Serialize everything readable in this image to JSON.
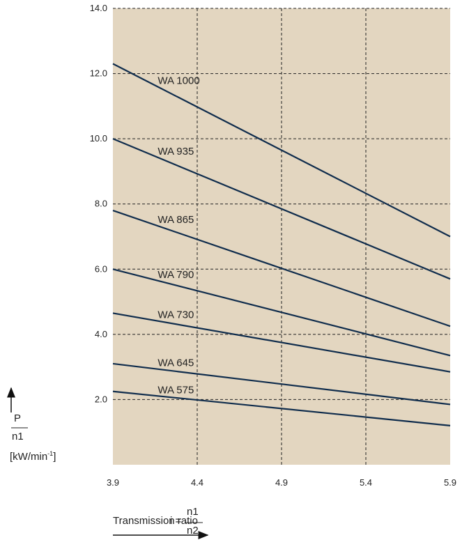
{
  "chart_data": {
    "type": "line",
    "xlim": [
      3.9,
      5.9
    ],
    "ylim": [
      0,
      14
    ],
    "x_ticks": [
      "3.9",
      "4.4",
      "4.9",
      "5.4",
      "5.9"
    ],
    "y_ticks": [
      "2.0",
      "4.0",
      "6.0",
      "8.0",
      "10.0",
      "12.0",
      "14.0"
    ],
    "grid": true,
    "background_color": "#e3d6c0",
    "line_color": "#0f2c4c",
    "series": [
      {
        "name": "WA 1000",
        "x": [
          3.9,
          5.9
        ],
        "y": [
          12.3,
          7.0
        ]
      },
      {
        "name": "WA 935",
        "x": [
          3.9,
          5.9
        ],
        "y": [
          10.0,
          5.7
        ]
      },
      {
        "name": "WA 865",
        "x": [
          3.9,
          5.9
        ],
        "y": [
          7.8,
          4.25
        ]
      },
      {
        "name": "WA 790",
        "x": [
          3.9,
          5.9
        ],
        "y": [
          6.0,
          3.35
        ]
      },
      {
        "name": "WA 730",
        "x": [
          3.9,
          5.9
        ],
        "y": [
          4.65,
          2.85
        ]
      },
      {
        "name": "WA 645",
        "x": [
          3.9,
          5.9
        ],
        "y": [
          3.1,
          1.85
        ]
      },
      {
        "name": "WA 575",
        "x": [
          3.9,
          5.9
        ],
        "y": [
          2.25,
          1.2
        ]
      }
    ],
    "ylabel": {
      "top": "P",
      "bottom": "n1",
      "unit": "[kW/min",
      "unit_sup": "-1",
      "unit_close": "]"
    },
    "xlabel": {
      "text": "Transmission ratio",
      "var": "i =",
      "num": "n1",
      "den": "n2"
    }
  }
}
